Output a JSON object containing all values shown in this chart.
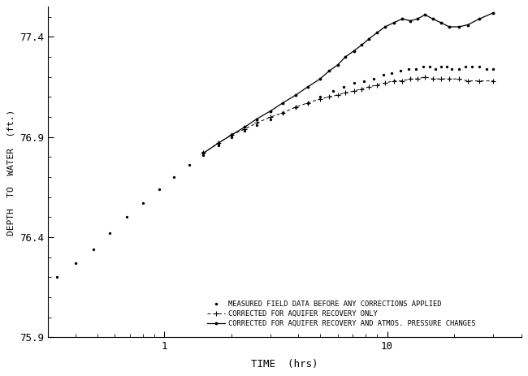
{
  "title": "",
  "xlabel": "TIME  (hrs)",
  "ylabel": "DEPTH  TO  WATER  (ft.)",
  "xlim": [
    0.3,
    40
  ],
  "ylim": [
    75.9,
    77.55
  ],
  "yticks": [
    75.9,
    76.4,
    76.9,
    77.4
  ],
  "background_color": "#ffffff",
  "legend_labels": [
    "MEASURED FIELD DATA BEFORE ANY CORRECTIONS APPLIED",
    "CORRECTED FOR AQUIFER RECOVERY ONLY",
    "CORRECTED FOR AQUIFER RECOVERY AND ATMOS. PRESSURE CHANGES"
  ],
  "series1_x": [
    0.33,
    0.4,
    0.48,
    0.57,
    0.68,
    0.8,
    0.95,
    1.1,
    1.3,
    1.5,
    1.75,
    2.0,
    2.3,
    2.6,
    3.0,
    3.4,
    3.9,
    4.4,
    5.0,
    5.7,
    6.4,
    7.1,
    7.9,
    8.7,
    9.6,
    10.5,
    11.5,
    12.5,
    13.5,
    14.5,
    15.5,
    16.5,
    17.5,
    18.5,
    19.5,
    21.0,
    22.5,
    24.0,
    26.0,
    28.0,
    30.0
  ],
  "series1_y": [
    76.2,
    76.27,
    76.34,
    76.42,
    76.5,
    76.57,
    76.64,
    76.7,
    76.76,
    76.81,
    76.86,
    76.9,
    76.93,
    76.96,
    76.99,
    77.02,
    77.05,
    77.07,
    77.1,
    77.13,
    77.15,
    77.17,
    77.18,
    77.19,
    77.21,
    77.22,
    77.23,
    77.24,
    77.24,
    77.25,
    77.25,
    77.24,
    77.25,
    77.25,
    77.24,
    77.24,
    77.25,
    77.25,
    77.25,
    77.24,
    77.24
  ],
  "series2_x": [
    1.5,
    1.75,
    2.0,
    2.3,
    2.6,
    3.0,
    3.4,
    3.9,
    4.4,
    5.0,
    5.5,
    6.0,
    6.5,
    7.1,
    7.7,
    8.3,
    9.0,
    9.8,
    10.7,
    11.7,
    12.7,
    13.7,
    14.8,
    16.0,
    17.5,
    19.0,
    21.0,
    23.0,
    26.0,
    30.0
  ],
  "series2_y": [
    76.82,
    76.87,
    76.91,
    76.94,
    76.97,
    77.0,
    77.02,
    77.05,
    77.07,
    77.09,
    77.1,
    77.11,
    77.12,
    77.13,
    77.14,
    77.15,
    77.16,
    77.17,
    77.18,
    77.18,
    77.19,
    77.19,
    77.2,
    77.19,
    77.19,
    77.19,
    77.19,
    77.18,
    77.18,
    77.18
  ],
  "series3_x": [
    1.5,
    1.75,
    2.0,
    2.3,
    2.6,
    3.0,
    3.4,
    3.9,
    4.4,
    5.0,
    5.5,
    6.0,
    6.5,
    7.1,
    7.7,
    8.3,
    9.0,
    9.8,
    10.7,
    11.7,
    12.7,
    13.7,
    14.8,
    16.0,
    17.5,
    19.0,
    21.0,
    23.0,
    26.0,
    30.0
  ],
  "series3_y": [
    76.82,
    76.87,
    76.91,
    76.95,
    76.99,
    77.03,
    77.07,
    77.11,
    77.15,
    77.19,
    77.23,
    77.26,
    77.3,
    77.33,
    77.36,
    77.39,
    77.42,
    77.45,
    77.47,
    77.49,
    77.48,
    77.49,
    77.51,
    77.49,
    77.47,
    77.45,
    77.45,
    77.46,
    77.49,
    77.52
  ]
}
